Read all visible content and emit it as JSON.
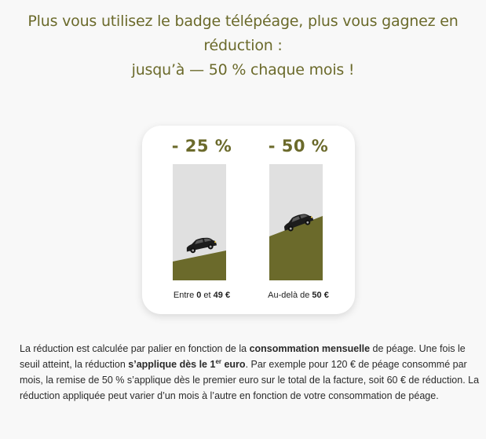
{
  "headline": {
    "line1": "Plus vous utilisez le badge télépéage, plus vous gagnez en réduction :",
    "line2": "jusqu’à — 50 % chaque mois !"
  },
  "tiers": [
    {
      "percent": "- 25 %",
      "caption_prefix": "Entre ",
      "caption_low": "0",
      "caption_mid": " et ",
      "caption_high": "49 €",
      "car_icon": "car-icon",
      "slope_icon": "hill-slope"
    },
    {
      "percent": "- 50 %",
      "caption_prefix": "Au-delà de ",
      "caption_high": "50 €",
      "car_icon": "car-icon",
      "slope_icon": "hill-slope"
    }
  ],
  "body": {
    "p1": "La réduction est calculée par palier en fonction de la ",
    "p1_bold": "consommation mensuelle",
    "p2": " de péage. Une fois le seuil atteint, la réduction ",
    "p2_bold_a": "s’applique dès le 1",
    "p2_bold_sup": "er",
    "p2_bold_b": " euro",
    "p3": ". Par exemple pour 120 € de péage consommé par mois, la remise de 50 % s’applique dès le premier euro sur le total de la facture, soit 60 € de réduction. La réduction appliquée peut varier d’un mois à l’autre en fonction de votre consommation de péage."
  },
  "colors": {
    "accent": "#6b6a2b",
    "bar_bg": "#e0e0e0",
    "card_bg": "#ffffff",
    "page_bg": "#f8f8f8"
  }
}
